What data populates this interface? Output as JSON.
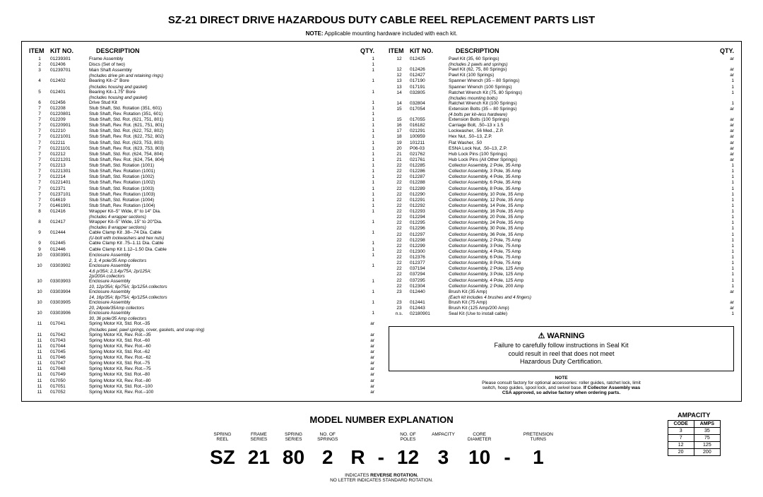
{
  "title": "SZ-21 DIRECT DRIVE HAZARDOUS DUTY CABLE REEL REPLACEMENT PARTS LIST",
  "topnote": {
    "label": "NOTE:",
    "text": "Applicable mounting hardware included with each kit."
  },
  "headers": {
    "item": "ITEM",
    "kit": "KIT NO.",
    "desc": "DESCRIPTION",
    "qty": "QTY."
  },
  "left": [
    {
      "i": "1",
      "k": "01239301",
      "d": "Frame Assembly",
      "q": "1"
    },
    {
      "i": "2",
      "k": "012406",
      "d": "Discs (Set of two)",
      "q": "1"
    },
    {
      "i": "3",
      "k": "01239701",
      "d": "Main Shaft Assembly",
      "q": "1"
    },
    {
      "sub": "(Includes drive pin and retaining rings)"
    },
    {
      "i": "4",
      "k": "012402",
      "d": "Bearing Kit–2\" Bore",
      "q": "1"
    },
    {
      "sub": "(Includes housing and gasket)"
    },
    {
      "i": "5",
      "k": "012401",
      "d": "Bearing Kit–1.75\" Bore",
      "q": "1"
    },
    {
      "sub": "(Includes housing and gasket)"
    },
    {
      "i": "6",
      "k": "012456",
      "d": "Drive Stud Kit",
      "q": "1"
    },
    {
      "i": "7",
      "k": "012208",
      "d": "Stub Shaft, Std. Rotation (351, 601)",
      "q": "1"
    },
    {
      "i": "7",
      "k": "01220801",
      "d": "Stub Shaft, Rev. Rotation (351, 601)",
      "q": "1"
    },
    {
      "i": "7",
      "k": "012209",
      "d": "Stub Shaft, Std. Rot. (621, 751, 801)",
      "q": "1"
    },
    {
      "i": "7",
      "k": "01220901",
      "d": "Stub Shaft, Rev. Rot. (621, 751, 801)",
      "q": "1"
    },
    {
      "i": "7",
      "k": "012210",
      "d": "Stub Shaft, Std. Rot. (622, 752, 802)",
      "q": "1"
    },
    {
      "i": "7",
      "k": "01221001",
      "d": "Stub Shaft, Rev. Rot. (622, 752, 802)",
      "q": "1"
    },
    {
      "i": "7",
      "k": "012211",
      "d": "Stub Shaft, Std. Rot. (623, 753, 803)",
      "q": "1"
    },
    {
      "i": "7",
      "k": "01221101",
      "d": "Stub Shaft, Rev. Rot. (623, 753, 803)",
      "q": "1"
    },
    {
      "i": "7",
      "k": "012212",
      "d": "Stub Shaft, Std. Rot. (624, 754, 804)",
      "q": "1"
    },
    {
      "i": "7",
      "k": "01221201",
      "d": "Stub Shaft, Rev. Rot. (624, 754, 804)",
      "q": "1"
    },
    {
      "i": "7",
      "k": "012213",
      "d": "Stub Shaft, Std. Rotation (1001)",
      "q": "1"
    },
    {
      "i": "7",
      "k": "01221301",
      "d": "Stub Shaft, Rev. Rotation (1001)",
      "q": "1"
    },
    {
      "i": "7",
      "k": "012214",
      "d": "Stub Shaft, Std. Rotation (1002)",
      "q": "1"
    },
    {
      "i": "7",
      "k": "01221401",
      "d": "Stub Shaft, Rev. Rotation (1002)",
      "q": "1"
    },
    {
      "i": "7",
      "k": "012371",
      "d": "Stub Shaft, Std. Rotation (1003)",
      "q": "1"
    },
    {
      "i": "7",
      "k": "01237101",
      "d": "Stub Shaft, Rev. Rotation (1003)",
      "q": "1"
    },
    {
      "i": "7",
      "k": "014619",
      "d": "Stub Shaft, Std. Rotation (1004)",
      "q": "1"
    },
    {
      "i": "7",
      "k": "01461901",
      "d": "Stub Shaft, Rev. Rotation (1004)",
      "q": "1"
    },
    {
      "i": "8",
      "k": "012416",
      "d": "Wrapper Kit–5\" Wide, 8\" to 14\" Dia.",
      "q": "1"
    },
    {
      "sub": "(Includes 4 wrapper sections)"
    },
    {
      "i": "8",
      "k": "012417",
      "d": "Wrapper Kit–5\" Wide, 15\" to 20\"Dia.",
      "q": "1"
    },
    {
      "sub": "(Includes 8 wrapper sections)"
    },
    {
      "i": "9",
      "k": "012444",
      "d": "Cable Clamp Kit .38–.74 Dia. Cable",
      "q": "1"
    },
    {
      "sub": "(U-bolt with lockwashers and hex nuts)"
    },
    {
      "i": "9",
      "k": "012445",
      "d": "Cable Clamp Kit .75–1.11 Dia. Cable",
      "q": "1"
    },
    {
      "i": "9",
      "k": "012446",
      "d": "Cable Clamp Kit 1.12–1.50 Dia. Cable",
      "q": "1"
    },
    {
      "i": "10",
      "k": "03303901",
      "d": "Enclosure Assembly",
      "q": "1"
    },
    {
      "sub": "2, 3, 4 pole/35 Amp collectors"
    },
    {
      "i": "10",
      "k": "03303902",
      "d": "Enclosure Assembly",
      "q": "1"
    },
    {
      "sub": "4,6 p/35A; 2,3,4p/75A; 2p/125A;"
    },
    {
      "sub": "2p/200A collectors"
    },
    {
      "i": "10",
      "k": "03303903",
      "d": "Enclosure Assembly",
      "q": "1"
    },
    {
      "sub": "10, 12p/35A; 6p/75A; 3p/125A collectors"
    },
    {
      "i": "10",
      "k": "03303904",
      "d": "Enclosure Assembly",
      "q": "1"
    },
    {
      "sub": "14, 16p/35A; 8p/75A; 4p/125A collectors"
    },
    {
      "i": "10",
      "k": "03303905",
      "d": "Enclosure Assembly",
      "q": "1"
    },
    {
      "sub": "20, 24pole/35Amp collectors"
    },
    {
      "i": "10",
      "k": "03303906",
      "d": "Enclosure Assembly",
      "q": "1"
    },
    {
      "sub": "30, 36 pole/35 Amp collectors"
    },
    {
      "i": "11",
      "k": "017041",
      "d": "Spring Motor Kit, Std. Rot.–35",
      "q": "ar"
    },
    {
      "sub": "(Includes pawl, pawl springs, cover, gaskets, and snap ring)"
    },
    {
      "i": "11",
      "k": "017042",
      "d": "Spring Motor Kit, Rev. Rot.–35",
      "q": "ar"
    },
    {
      "i": "11",
      "k": "017043",
      "d": "Spring Motor Kit, Std. Rot.–60",
      "q": "ar"
    },
    {
      "i": "11",
      "k": "017044",
      "d": "Spring Motor Kit, Rev. Rot.–60",
      "q": "ar"
    },
    {
      "i": "11",
      "k": "017045",
      "d": "Spring Motor Kit, Std. Rot.–62",
      "q": "ar"
    },
    {
      "i": "11",
      "k": "017046",
      "d": "Spring Motor Kit, Rev. Rot.–62",
      "q": "ar"
    },
    {
      "i": "11",
      "k": "017047",
      "d": "Spring Motor Kit, Std. Rot.–75",
      "q": "ar"
    },
    {
      "i": "11",
      "k": "017048",
      "d": "Spring Motor Kit, Rev. Rot.–75",
      "q": "ar"
    },
    {
      "i": "11",
      "k": "017049",
      "d": "Spring Motor Kit, Std. Rot.–80",
      "q": "ar"
    },
    {
      "i": "11",
      "k": "017050",
      "d": "Spring Motor Kit, Rev. Rot.–80",
      "q": "ar"
    },
    {
      "i": "11",
      "k": "017051",
      "d": "Spring Motor Kit, Std. Rot.–100",
      "q": "ar"
    },
    {
      "i": "11",
      "k": "017052",
      "d": "Spring Motor Kit, Rev. Rot.–100",
      "q": "ar"
    }
  ],
  "right": [
    {
      "i": "12",
      "k": "012425",
      "d": "Pawl Kit (35, 60 Springs)",
      "q": "ar"
    },
    {
      "sub": "(Includes 2 pawls and springs)"
    },
    {
      "i": "12",
      "k": "012426",
      "d": "Pawl Kit (62, 75, 80 Springs)",
      "q": "ar"
    },
    {
      "i": "12",
      "k": "012427",
      "d": "Pawl Kit (100 Springs)",
      "q": "ar"
    },
    {
      "i": "13",
      "k": "017190",
      "d": "Spanner Wrench (35 – 80 Springs)",
      "q": "1"
    },
    {
      "i": "13",
      "k": "017191",
      "d": "Spanner Wrench (100 Springs)",
      "q": "1"
    },
    {
      "i": "14",
      "k": "032805",
      "d": "Ratchet Wrench Kit (75, 80 Springs)",
      "q": "1"
    },
    {
      "sub": "(Includes mounting bolts)"
    },
    {
      "i": "14",
      "k": "032804",
      "d": "Ratchet Wrench Kit (100 Springs)",
      "q": "1"
    },
    {
      "i": "15",
      "k": "017054",
      "d": "Extension Bolts (35 – 80 Springs)",
      "q": "ar"
    },
    {
      "sub": "(4 bolts per kit–less hardware)"
    },
    {
      "i": "15",
      "k": "017055",
      "d": "Extension Bolts (100 Springs)",
      "q": "ar"
    },
    {
      "i": "16",
      "k": "016182",
      "d": "Carriage Bolt, .50–13 x 1.5",
      "q": "ar"
    },
    {
      "i": "17",
      "k": "021291",
      "d": "Lockwasher, .56 Med., Z.P.",
      "q": "ar"
    },
    {
      "i": "18",
      "k": "100959",
      "d": "Hex Nut, .50–13, Z.P.",
      "q": "ar"
    },
    {
      "i": "19",
      "k": "101211",
      "d": "Flat Washer, .50",
      "q": "ar"
    },
    {
      "i": "20",
      "k": "P06-03",
      "d": "ESNA Lock Nut, .50–13, Z.P.",
      "q": "ar"
    },
    {
      "i": "21",
      "k": "021762",
      "d": "Hub Lock Pins (100 Springs)",
      "q": "ar"
    },
    {
      "i": "21",
      "k": "021761",
      "d": "Hub Lock Pins (All Other Springs)",
      "q": "ar"
    },
    {
      "i": "22",
      "k": "012285",
      "d": "Collector Assembly, 2 Pole, 35 Amp",
      "q": "1"
    },
    {
      "i": "22",
      "k": "012286",
      "d": "Collector Assembly, 3 Pole, 35 Amp",
      "q": "1"
    },
    {
      "i": "22",
      "k": "012287",
      "d": "Collector Assembly, 4 Pole, 35 Amp",
      "q": "1"
    },
    {
      "i": "22",
      "k": "012288",
      "d": "Collector Assembly, 6 Pole, 35 Amp",
      "q": "1"
    },
    {
      "i": "22",
      "k": "012289",
      "d": "Collector Assembly, 8 Pole, 35 Amp",
      "q": "1"
    },
    {
      "i": "22",
      "k": "012290",
      "d": "Collector Assembly, 10 Pole, 35 Amp",
      "q": "1"
    },
    {
      "i": "22",
      "k": "012291",
      "d": "Collector Assembly, 12 Pole, 35 Amp",
      "q": "1"
    },
    {
      "i": "22",
      "k": "012292",
      "d": "Collector Assembly, 14 Pole, 35 Amp",
      "q": "1"
    },
    {
      "i": "22",
      "k": "012293",
      "d": "Collector Assembly, 16 Pole, 35 Amp",
      "q": "1"
    },
    {
      "i": "22",
      "k": "012294",
      "d": "Collector Assembly, 20 Pole, 35 Amp",
      "q": "1"
    },
    {
      "i": "22",
      "k": "012295",
      "d": "Collector Assembly, 24 Pole, 35 Amp",
      "q": "1"
    },
    {
      "i": "22",
      "k": "012296",
      "d": "Collector Assembly, 30 Pole, 35 Amp",
      "q": "1"
    },
    {
      "i": "22",
      "k": "012297",
      "d": "Collector Assembly, 36 Pole, 35 Amp",
      "q": "1"
    },
    {
      "i": "22",
      "k": "012298",
      "d": "Collector Assembly, 2 Pole, 75 Amp",
      "q": "1"
    },
    {
      "i": "22",
      "k": "012299",
      "d": "Collector Assembly, 3 Pole, 75 Amp",
      "q": "1"
    },
    {
      "i": "22",
      "k": "012300",
      "d": "Collector Assembly, 4 Pole, 75 Amp",
      "q": "1"
    },
    {
      "i": "22",
      "k": "012376",
      "d": "Collector Assembly, 6 Pole, 75 Amp",
      "q": "1"
    },
    {
      "i": "22",
      "k": "012377",
      "d": "Collector Assembly, 8 Pole, 75 Amp",
      "q": "1"
    },
    {
      "i": "22",
      "k": "037194",
      "d": "Collector Assembly, 2 Pole, 125 Amp",
      "q": "1"
    },
    {
      "i": "22",
      "k": "037294",
      "d": "Collector Assembly, 3 Pole, 125 Amp",
      "q": "1"
    },
    {
      "i": "22",
      "k": "037295",
      "d": "Collector Assembly, 4 Pole, 125 Amp",
      "q": "1"
    },
    {
      "i": "22",
      "k": "012304",
      "d": "Collector Assembly, 2 Pole, 200 Amp",
      "q": "1"
    },
    {
      "i": "23",
      "k": "012440",
      "d": "Brush Kit (35 Amp)",
      "q": "ar"
    },
    {
      "sub": "(Each kit includes 4 brushes and 4 fingers)"
    },
    {
      "i": "23",
      "k": "012441",
      "d": "Brush Kit (75 Amp)",
      "q": "ar"
    },
    {
      "i": "23",
      "k": "012443",
      "d": "Brush Kit (125 Amp/200 Amp)",
      "q": "ar"
    },
    {
      "i": "n.s.",
      "k": "02180901",
      "d": "Seal Kit (Use to install cable)",
      "q": "1"
    }
  ],
  "warning": {
    "h": "WARNING",
    "b1": "Failure to carefully follow instructions in Seal Kit",
    "b2": "could result in reel that does not meet",
    "b3": "Hazardous Duty Certification."
  },
  "botnote": {
    "h": "NOTE",
    "l1": "Please consult factory for optional accessories: roller guides, ratchet lock, limit",
    "l2a": "switch, hoop guides, spool lock, and swivel base. ",
    "l2b": "If Collector Assembly was",
    "l3": "CSA approved, so advise factory when ordering parts."
  },
  "model": {
    "title": "MODEL NUMBER EXPLANATION",
    "cols": [
      {
        "l": "SPRING\nREEL",
        "v": "SZ"
      },
      {
        "l": "FRAME\nSERIES",
        "v": "21"
      },
      {
        "l": "SPRING\nSERIES",
        "v": "80"
      },
      {
        "l": "NO. OF\nSPRINGS",
        "v": "2"
      },
      {
        "l": "",
        "v": "R"
      },
      {
        "l": "",
        "v": "-"
      },
      {
        "l": "NO. OF\nPOLES",
        "v": "12"
      },
      {
        "l": "AMPACITY",
        "v": "3"
      },
      {
        "l": "CORE\nDIAMETER",
        "v": "10"
      },
      {
        "l": "",
        "v": "-"
      },
      {
        "l": "PRETENSION\nTURNS",
        "v": "1"
      }
    ],
    "foot1a": "INDICATES ",
    "foot1b": "REVERSE ROTATION.",
    "foot2": "NO LETTER INDICATES STANDARD ROTATION."
  },
  "ampacity": {
    "title": "AMPACITY",
    "h1": "CODE",
    "h2": "AMPS",
    "rows": [
      [
        "3",
        "35"
      ],
      [
        "7",
        "75"
      ],
      [
        "12",
        "125"
      ],
      [
        "20",
        "200"
      ]
    ]
  }
}
